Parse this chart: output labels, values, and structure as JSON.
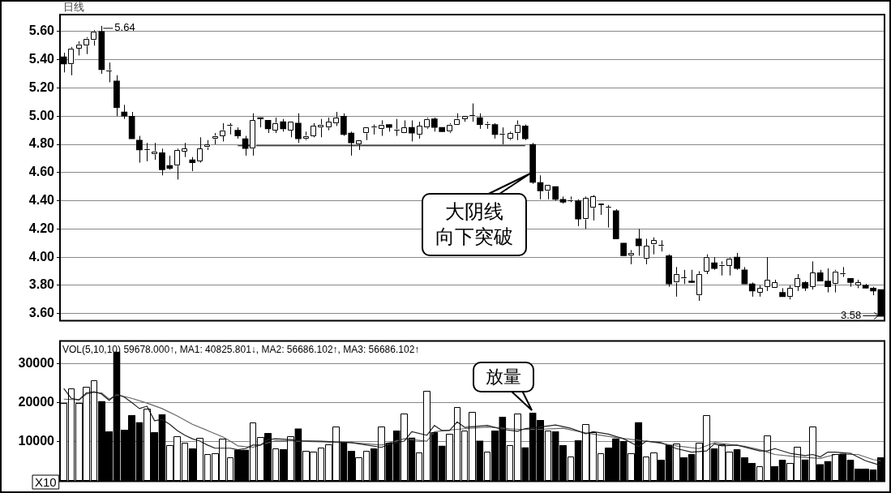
{
  "chart_data": [
    {
      "type": "candlestick",
      "title": "日线",
      "categories": [
        null,
        null,
        null,
        null,
        null,
        null,
        null,
        null,
        null,
        null,
        null,
        null,
        null,
        null,
        null,
        null,
        null,
        null,
        null,
        null,
        null,
        null,
        null,
        null,
        null,
        null,
        null,
        null,
        null,
        null,
        null,
        null,
        null,
        null,
        null,
        null,
        null,
        null,
        null,
        null,
        null,
        null,
        null,
        null,
        null,
        null,
        null,
        null,
        null,
        null,
        null,
        null,
        null,
        null,
        null,
        null,
        null,
        null,
        null,
        null,
        null,
        null,
        null,
        null,
        null,
        null,
        null,
        null,
        null,
        null,
        null,
        null,
        null,
        null,
        null,
        null,
        null,
        null,
        null,
        null,
        null,
        null,
        null,
        null,
        null,
        null,
        null,
        null,
        null,
        null,
        null,
        null,
        null,
        null,
        null,
        null,
        null,
        null,
        null,
        null,
        null,
        null,
        null,
        null,
        null,
        null,
        null,
        null,
        null
      ],
      "ohlc": [
        [
          5.42,
          5.45,
          5.31,
          5.37
        ],
        [
          5.37,
          5.49,
          5.29,
          5.48
        ],
        [
          5.48,
          5.53,
          5.43,
          5.51
        ],
        [
          5.5,
          5.56,
          5.44,
          5.55
        ],
        [
          5.54,
          5.61,
          5.5,
          5.6
        ],
        [
          5.6,
          5.64,
          5.3,
          5.33
        ],
        [
          5.32,
          5.38,
          5.24,
          5.32
        ],
        [
          5.25,
          5.29,
          5.0,
          5.06
        ],
        [
          5.03,
          5.08,
          4.98,
          5.0
        ],
        [
          5.0,
          5.03,
          4.84,
          4.84
        ],
        [
          4.83,
          4.86,
          4.67,
          4.76
        ],
        [
          4.76,
          4.81,
          4.68,
          4.76
        ],
        [
          4.73,
          4.81,
          4.69,
          4.75
        ],
        [
          4.74,
          4.77,
          4.58,
          4.62
        ],
        [
          4.65,
          4.72,
          4.62,
          4.63
        ],
        [
          4.65,
          4.77,
          4.55,
          4.76
        ],
        [
          4.75,
          4.81,
          4.71,
          4.77
        ],
        [
          4.69,
          4.71,
          4.61,
          4.67
        ],
        [
          4.68,
          4.85,
          4.67,
          4.77
        ],
        [
          4.78,
          4.83,
          4.76,
          4.8
        ],
        [
          4.84,
          4.88,
          4.8,
          4.86
        ],
        [
          4.86,
          4.95,
          4.82,
          4.9
        ],
        [
          4.93,
          4.95,
          4.87,
          4.93
        ],
        [
          4.9,
          4.92,
          4.84,
          4.86
        ],
        [
          4.84,
          4.86,
          4.72,
          4.77
        ],
        [
          4.77,
          5.02,
          4.72,
          4.97
        ],
        [
          4.99,
          4.99,
          4.92,
          4.98
        ],
        [
          4.97,
          4.97,
          4.88,
          4.91
        ],
        [
          4.9,
          4.99,
          4.88,
          4.95
        ],
        [
          4.96,
          4.98,
          4.89,
          4.91
        ],
        [
          4.9,
          4.96,
          4.85,
          4.96
        ],
        [
          4.95,
          5.02,
          4.81,
          4.84
        ],
        [
          4.84,
          4.89,
          4.83,
          4.86
        ],
        [
          4.86,
          4.95,
          4.85,
          4.93
        ],
        [
          4.92,
          4.98,
          4.85,
          4.94
        ],
        [
          4.92,
          4.99,
          4.9,
          4.96
        ],
        [
          4.95,
          5.03,
          4.93,
          4.99
        ],
        [
          5.0,
          5.02,
          4.86,
          4.87
        ],
        [
          4.88,
          4.89,
          4.72,
          4.81
        ],
        [
          4.8,
          4.83,
          4.76,
          4.83
        ],
        [
          4.88,
          4.92,
          4.83,
          4.92
        ],
        [
          4.92,
          4.94,
          4.87,
          4.92
        ],
        [
          4.91,
          4.97,
          4.86,
          4.94
        ],
        [
          4.94,
          4.94,
          4.89,
          4.92
        ],
        [
          4.9,
          4.98,
          4.86,
          4.9
        ],
        [
          4.88,
          4.97,
          4.88,
          4.92
        ],
        [
          4.92,
          4.97,
          4.82,
          4.88
        ],
        [
          4.87,
          4.96,
          4.84,
          4.93
        ],
        [
          4.92,
          4.99,
          4.91,
          4.98
        ],
        [
          4.98,
          4.99,
          4.89,
          4.92
        ],
        [
          4.92,
          4.92,
          4.89,
          4.89
        ],
        [
          4.89,
          4.95,
          4.88,
          4.94
        ],
        [
          4.94,
          5.02,
          4.94,
          4.98
        ],
        [
          4.98,
          5.0,
          4.96,
          5.0
        ],
        [
          5.0,
          5.09,
          4.96,
          5.0
        ],
        [
          4.99,
          5.02,
          4.91,
          4.94
        ],
        [
          4.94,
          4.96,
          4.91,
          4.94
        ],
        [
          4.94,
          4.95,
          4.84,
          4.87
        ],
        [
          4.87,
          4.92,
          4.8,
          4.87
        ],
        [
          4.84,
          4.89,
          4.83,
          4.88
        ],
        [
          4.88,
          4.97,
          4.83,
          4.94
        ],
        [
          4.93,
          4.94,
          4.83,
          4.84
        ],
        [
          4.8,
          4.81,
          4.52,
          4.53
        ],
        [
          4.53,
          4.58,
          4.41,
          4.47
        ],
        [
          4.47,
          4.51,
          4.41,
          4.51
        ],
        [
          4.5,
          4.5,
          4.4,
          4.41
        ],
        [
          4.41,
          4.43,
          4.38,
          4.39
        ],
        [
          4.4,
          4.43,
          4.39,
          4.4
        ],
        [
          4.4,
          4.41,
          4.22,
          4.27
        ],
        [
          4.27,
          4.43,
          4.2,
          4.42
        ],
        [
          4.35,
          4.44,
          4.26,
          4.43
        ],
        [
          4.37,
          4.38,
          4.3,
          4.38
        ],
        [
          4.35,
          4.37,
          4.21,
          4.35
        ],
        [
          4.33,
          4.34,
          4.13,
          4.13
        ],
        [
          4.1,
          4.1,
          4.01,
          4.01
        ],
        [
          4.01,
          4.05,
          3.95,
          4.03
        ],
        [
          4.13,
          4.2,
          4.01,
          4.08
        ],
        [
          3.99,
          4.13,
          3.95,
          4.08
        ],
        [
          4.09,
          4.14,
          4.02,
          4.12
        ],
        [
          4.08,
          4.12,
          4.04,
          4.08
        ],
        [
          4.01,
          4.02,
          3.79,
          3.81
        ],
        [
          3.82,
          3.93,
          3.72,
          3.88
        ],
        [
          3.85,
          3.91,
          3.81,
          3.85
        ],
        [
          3.83,
          3.91,
          3.82,
          3.82
        ],
        [
          3.73,
          3.9,
          3.69,
          3.88
        ],
        [
          3.9,
          4.02,
          3.88,
          4.0
        ],
        [
          3.96,
          4.0,
          3.91,
          3.92
        ],
        [
          3.94,
          3.97,
          3.87,
          3.94
        ],
        [
          3.94,
          4.0,
          3.87,
          3.99
        ],
        [
          4.0,
          4.03,
          3.91,
          3.92
        ],
        [
          3.91,
          3.93,
          3.81,
          3.81
        ],
        [
          3.81,
          3.82,
          3.72,
          3.76
        ],
        [
          3.75,
          3.8,
          3.72,
          3.78
        ],
        [
          3.79,
          4.0,
          3.76,
          3.84
        ],
        [
          3.78,
          3.84,
          3.78,
          3.82
        ],
        [
          3.75,
          3.78,
          3.72,
          3.72
        ],
        [
          3.72,
          3.8,
          3.7,
          3.78
        ],
        [
          3.79,
          3.88,
          3.76,
          3.85
        ],
        [
          3.82,
          3.83,
          3.76,
          3.78
        ],
        [
          3.79,
          3.97,
          3.77,
          3.89
        ],
        [
          3.89,
          3.91,
          3.83,
          3.83
        ],
        [
          3.83,
          3.92,
          3.75,
          3.79
        ],
        [
          3.81,
          3.91,
          3.75,
          3.9
        ],
        [
          3.88,
          3.93,
          3.86,
          3.88
        ],
        [
          3.85,
          3.85,
          3.79,
          3.82
        ],
        [
          3.8,
          3.84,
          3.78,
          3.82
        ],
        [
          3.8,
          3.81,
          3.78,
          3.78
        ],
        [
          3.78,
          3.79,
          3.73,
          3.76
        ],
        [
          3.77,
          3.77,
          3.58,
          3.58
        ]
      ],
      "series": [
        {
          "type": "line",
          "color": "#000000",
          "values": [
            null,
            null,
            null,
            null,
            null,
            null,
            null,
            null,
            null,
            null,
            null,
            null,
            null,
            null,
            null,
            null,
            null,
            null,
            null,
            null,
            null,
            null,
            null,
            4.79,
            null,
            null,
            null,
            null,
            null,
            null,
            null,
            null,
            null,
            null,
            null,
            null,
            null,
            null,
            null,
            null,
            null,
            null,
            null,
            null,
            null,
            null,
            null,
            null,
            null,
            null,
            null,
            null,
            null,
            null,
            null,
            null,
            null,
            null,
            null,
            null,
            null,
            4.79,
            null,
            null,
            null,
            null,
            null,
            null,
            null,
            null,
            null,
            null,
            null,
            null,
            null,
            null,
            null,
            null,
            null,
            null,
            null,
            null,
            null,
            null,
            null,
            null,
            null,
            null,
            null,
            null,
            null,
            null,
            null,
            null,
            null,
            null,
            null,
            null,
            null,
            null,
            null,
            null,
            null,
            null,
            null,
            null,
            null,
            null,
            null
          ]
        }
      ],
      "ylim": [
        3.55,
        5.72
      ],
      "yticks": [
        {
          "value": 3.6,
          "label": "3.60"
        },
        {
          "value": 3.8,
          "label": "3.80"
        },
        {
          "value": 4.0,
          "label": "4.00"
        },
        {
          "value": 4.2,
          "label": "4.20"
        },
        {
          "value": 4.4,
          "label": "4.40"
        },
        {
          "value": 4.6,
          "label": "4.60"
        },
        {
          "value": 4.8,
          "label": "4.80"
        },
        {
          "value": 5.0,
          "label": "5.00"
        },
        {
          "value": 5.2,
          "label": "5.20"
        },
        {
          "value": 5.4,
          "label": "5.40"
        },
        {
          "value": 5.6,
          "label": "5.60"
        }
      ],
      "grid": "y",
      "tick_labels": "y",
      "annotations": [
        "5.64",
        "3.58",
        "大阴线向下突破"
      ]
    },
    {
      "type": "bar",
      "categories": [
        null,
        null,
        null,
        null,
        null,
        null,
        null,
        null,
        null,
        null,
        null,
        null,
        null,
        null,
        null,
        null,
        null,
        null,
        null,
        null,
        null,
        null,
        null,
        null,
        null,
        null,
        null,
        null,
        null,
        null,
        null,
        null,
        null,
        null,
        null,
        null,
        null,
        null,
        null,
        null,
        null,
        null,
        null,
        null,
        null,
        null,
        null,
        null,
        null,
        null,
        null,
        null,
        null,
        null,
        null,
        null,
        null,
        null,
        null,
        null,
        null,
        null,
        null,
        null,
        null,
        null,
        null,
        null,
        null,
        null,
        null,
        null,
        null,
        null,
        null,
        null,
        null,
        null,
        null,
        null,
        null,
        null,
        null,
        null,
        null,
        null,
        null,
        null,
        null,
        null,
        null,
        null,
        null,
        null,
        null,
        null,
        null,
        null,
        null,
        null,
        null,
        null,
        null,
        null,
        null,
        null,
        null,
        null,
        null
      ],
      "series": [
        {
          "type": "bar",
          "values": [
            19900,
            23700,
            19900,
            24100,
            25800,
            20400,
            12700,
            33000,
            13100,
            16800,
            15000,
            18500,
            12400,
            17000,
            9200,
            11500,
            9800,
            8300,
            11100,
            6900,
            7200,
            10800,
            6000,
            8000,
            8000,
            15000,
            11300,
            12200,
            8300,
            8100,
            11400,
            13400,
            7700,
            7600,
            8500,
            9400,
            14000,
            9800,
            7700,
            6000,
            7700,
            8300,
            14000,
            9700,
            12900,
            17200,
            11100,
            7300,
            23000,
            12500,
            9000,
            12100,
            18800,
            12900,
            17700,
            10300,
            7500,
            12900,
            16400,
            9100,
            17200,
            8600,
            17400,
            15600,
            12900,
            12700,
            9100,
            6300,
            10400,
            14500,
            12500,
            7200,
            8500,
            10900,
            10200,
            7200,
            15000,
            6200,
            7300,
            5400,
            9100,
            9500,
            6000,
            6800,
            9800,
            16800,
            8300,
            9400,
            7500,
            8100,
            6000,
            4600,
            3800,
            11700,
            3800,
            5400,
            4600,
            8800,
            5500,
            14000,
            4300,
            5100,
            6800,
            7000,
            5400,
            3100,
            3100,
            2900,
            6000
          ],
          "colors": [
            "#ffffff",
            "#ffffff",
            "#ffffff",
            "#ffffff",
            "#ffffff",
            "#000000",
            "#000000",
            "#000000",
            "#000000",
            "#000000",
            "#000000",
            "#ffffff",
            "#000000",
            "#000000",
            "#ffffff",
            "#ffffff",
            "#ffffff",
            "#000000",
            "#ffffff",
            "#ffffff",
            "#ffffff",
            "#ffffff",
            "#ffffff",
            "#000000",
            "#000000",
            "#ffffff",
            "#ffffff",
            "#000000",
            "#ffffff",
            "#000000",
            "#ffffff",
            "#000000",
            "#ffffff",
            "#ffffff",
            "#ffffff",
            "#ffffff",
            "#ffffff",
            "#000000",
            "#000000",
            "#ffffff",
            "#ffffff",
            "#000000",
            "#ffffff",
            "#000000",
            "#000000",
            "#ffffff",
            "#000000",
            "#ffffff",
            "#ffffff",
            "#000000",
            "#000000",
            "#ffffff",
            "#ffffff",
            "#ffffff",
            "#ffffff",
            "#000000",
            "#ffffff",
            "#000000",
            "#000000",
            "#ffffff",
            "#ffffff",
            "#000000",
            "#000000",
            "#000000",
            "#ffffff",
            "#000000",
            "#000000",
            "#ffffff",
            "#000000",
            "#ffffff",
            "#ffffff",
            "#ffffff",
            "#000000",
            "#000000",
            "#000000",
            "#ffffff",
            "#000000",
            "#ffffff",
            "#ffffff",
            "#000000",
            "#000000",
            "#ffffff",
            "#000000",
            "#000000",
            "#ffffff",
            "#ffffff",
            "#000000",
            "#ffffff",
            "#ffffff",
            "#000000",
            "#000000",
            "#000000",
            "#ffffff",
            "#ffffff",
            "#000000",
            "#000000",
            "#ffffff",
            "#ffffff",
            "#000000",
            "#ffffff",
            "#000000",
            "#000000",
            "#ffffff",
            "#000000",
            "#000000",
            "#000000",
            "#000000",
            "#000000",
            "#000000"
          ]
        },
        {
          "type": "line",
          "color": "#222222",
          "values": [
            23600,
            21100,
            20700,
            22500,
            22800,
            22200,
            20600,
            22200,
            21400,
            20000,
            18500,
            19100,
            15400,
            15700,
            14500,
            12900,
            11700,
            10800,
            10200,
            9200,
            8400,
            null,
            8400,
            8000,
            8300,
            9200,
            9200,
            10600,
            10800,
            null,
            10600,
            10300,
            null,
            null,
            10200,
            null,
            null,
            null,
            9800,
            null,
            null,
            null,
            8600,
            9400,
            null,
            10200,
            12600,
            null,
            11700,
            14200,
            12900,
            12900,
            15100,
            13700,
            null,
            null,
            14200,
            null,
            13200,
            null,
            12700,
            13400,
            null,
            13800,
            null,
            14300,
            null,
            13500,
            null,
            12100,
            12600,
            null,
            12000,
            null,
            10800,
            null,
            8800,
            10200,
            null,
            9800,
            null,
            8300,
            null,
            7400,
            null,
            7700,
            9500,
            9000,
            null,
            9200,
            null,
            null,
            7700,
            7700,
            8300,
            null,
            7100,
            null,
            6500,
            6800,
            6200,
            7400,
            7400,
            null,
            7100,
            null,
            5200,
            4600,
            4000
          ]
        },
        {
          "type": "line",
          "color": "#666666",
          "values": [
            20900,
            null,
            20700,
            22200,
            22600,
            22500,
            20900,
            22000,
            null,
            21100,
            null,
            19900,
            null,
            18500,
            null,
            16600,
            null,
            14500,
            null,
            12900,
            null,
            11300,
            10200,
            9000,
            null,
            8600,
            9200,
            9800,
            10300,
            null,
            10300,
            10200,
            null,
            null,
            null,
            null,
            null,
            null,
            9800,
            null,
            null,
            null,
            9200,
            null,
            null,
            10800,
            null,
            null,
            10200,
            12600,
            null,
            null,
            13200,
            null,
            null,
            null,
            13800,
            null,
            null,
            null,
            13200,
            null,
            null,
            13200,
            null,
            null,
            13500,
            null,
            null,
            12300,
            12000,
            null,
            null,
            11100,
            null,
            null,
            null,
            10200,
            null,
            null,
            null,
            9000,
            null,
            null,
            8300,
            null,
            9800,
            null,
            null,
            null,
            8900,
            null,
            8000,
            null,
            6800,
            null,
            null,
            6200,
            null,
            null,
            5800,
            null,
            6800,
            null,
            null,
            6800,
            null,
            5500,
            5200
          ]
        }
      ],
      "ylim": [
        0,
        35700
      ],
      "yticks": [
        10000,
        20000,
        30000
      ],
      "grid": "y",
      "tick_labels": "y",
      "annotations": [
        "VOL(5,10,10) 59678.000↑, MA1: 40825.801↓, MA2: 56686.102↑, MA3: 56686.102↑",
        "X10",
        "放量"
      ]
    }
  ]
}
